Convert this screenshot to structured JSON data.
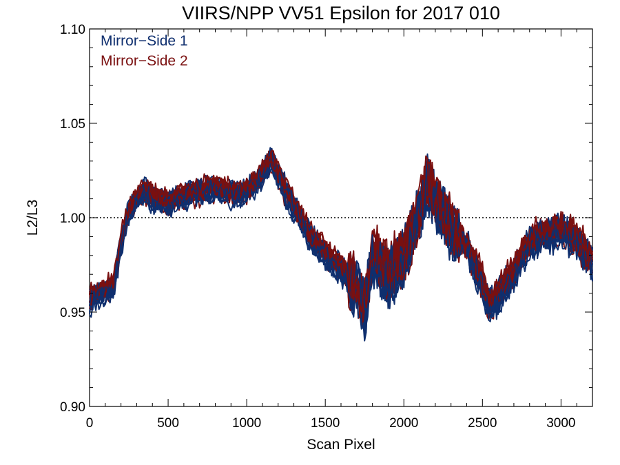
{
  "chart_data": {
    "type": "line",
    "title": "VIIRS/NPP VV51 Epsilon for 2017 010",
    "xlabel": "Scan Pixel",
    "ylabel": "L2/L3",
    "xlim": [
      0,
      3200
    ],
    "ylim": [
      0.9,
      1.1
    ],
    "x_ticks": [
      0,
      500,
      1000,
      1500,
      2000,
      2500,
      3000
    ],
    "x_tick_labels": [
      "0",
      "500",
      "1000",
      "1500",
      "2000",
      "2500",
      "3000"
    ],
    "y_ticks": [
      0.9,
      0.95,
      1.0,
      1.05,
      1.1
    ],
    "y_tick_labels": [
      "0.90",
      "0.95",
      "1.00",
      "1.05",
      "1.10"
    ],
    "reference_line": 1.0,
    "legend_position": "top-left",
    "x": [
      0,
      50,
      100,
      150,
      200,
      250,
      300,
      350,
      400,
      500,
      600,
      700,
      800,
      900,
      1000,
      1100,
      1150,
      1200,
      1300,
      1400,
      1500,
      1600,
      1700,
      1750,
      1800,
      1850,
      1900,
      2000,
      2100,
      2150,
      2200,
      2300,
      2400,
      2500,
      2550,
      2600,
      2700,
      2800,
      2900,
      3000,
      3100,
      3200
    ],
    "series": [
      {
        "name": "Mirror−Side 1",
        "color": "#0f2f6e",
        "curves": 12,
        "values": [
          0.955,
          0.958,
          0.96,
          0.962,
          0.985,
          1.003,
          1.01,
          1.014,
          1.01,
          1.008,
          1.011,
          1.014,
          1.015,
          1.012,
          1.013,
          1.022,
          1.03,
          1.022,
          1.005,
          0.99,
          0.98,
          0.972,
          0.962,
          0.95,
          0.978,
          0.975,
          0.968,
          0.978,
          1.002,
          1.018,
          1.008,
          0.994,
          0.984,
          0.964,
          0.952,
          0.958,
          0.97,
          0.986,
          0.99,
          0.993,
          0.987,
          0.974
        ]
      },
      {
        "name": "Mirror−Side 2",
        "color": "#7a1010",
        "curves": 12,
        "values": [
          0.957,
          0.96,
          0.962,
          0.964,
          0.987,
          1.004,
          1.011,
          1.015,
          1.011,
          1.009,
          1.012,
          1.014,
          1.016,
          1.013,
          1.014,
          1.023,
          1.032,
          1.023,
          1.006,
          0.991,
          0.982,
          0.974,
          0.964,
          0.952,
          0.98,
          0.976,
          0.97,
          0.98,
          1.004,
          1.02,
          1.009,
          0.995,
          0.985,
          0.966,
          0.954,
          0.96,
          0.972,
          0.988,
          0.992,
          0.995,
          0.989,
          0.976
        ]
      }
    ]
  }
}
